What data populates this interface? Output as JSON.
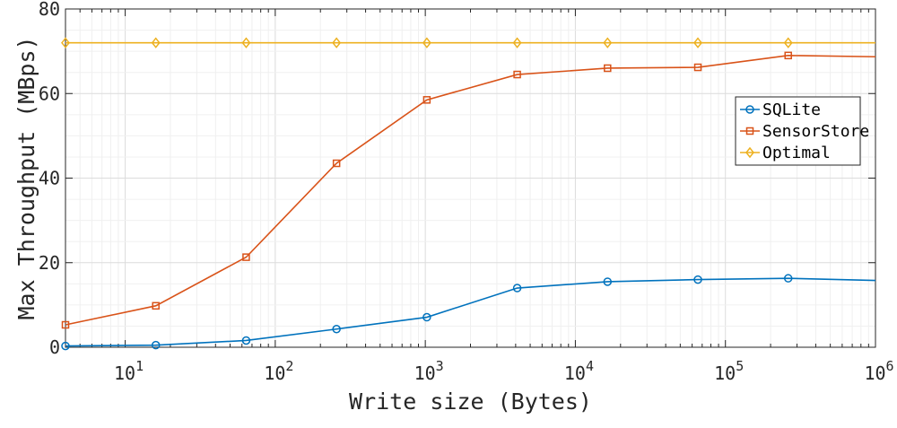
{
  "chart_data": {
    "type": "line",
    "xlabel": "Write size (Bytes)",
    "ylabel": "Max Throughput (MBps)",
    "x_scale": "log",
    "xlim": [
      4,
      1000000
    ],
    "ylim": [
      0,
      80
    ],
    "grid": true,
    "legend_position": "right",
    "y_ticks": [
      "0",
      "20",
      "40",
      "60",
      "80"
    ],
    "x_ticks": [
      {
        "base": "10",
        "exp": "1"
      },
      {
        "base": "10",
        "exp": "2"
      },
      {
        "base": "10",
        "exp": "3"
      },
      {
        "base": "10",
        "exp": "4"
      },
      {
        "base": "10",
        "exp": "5"
      },
      {
        "base": "10",
        "exp": "6"
      }
    ],
    "x": [
      4,
      16,
      64,
      256,
      1024,
      4096,
      16384,
      65536,
      262144,
      1000000
    ],
    "series": [
      {
        "name": "SQLite",
        "color": "#0072BD",
        "marker": "circle",
        "values": [
          0.3,
          0.5,
          1.6,
          4.3,
          7.1,
          14.0,
          15.5,
          16.0,
          16.3,
          15.8
        ]
      },
      {
        "name": "SensorStore",
        "color": "#D95319",
        "marker": "square",
        "values": [
          5.3,
          9.8,
          21.3,
          43.5,
          58.5,
          64.5,
          66.0,
          66.2,
          69.0,
          68.7
        ]
      },
      {
        "name": "Optimal",
        "color": "#EDB120",
        "marker": "diamond",
        "values": [
          72,
          72,
          72,
          72,
          72,
          72,
          72,
          72,
          72,
          72
        ]
      }
    ]
  }
}
